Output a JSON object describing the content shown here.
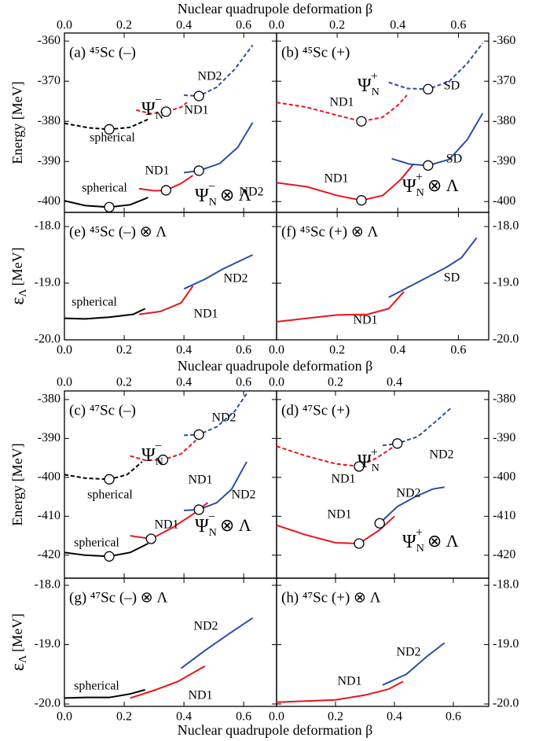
{
  "x_axis_labels": [
    "Nuclear quadrupole deformation β",
    "Nuclear quadrupole deformation β",
    "Nuclear quadrupole deformation β"
  ],
  "chart_data": [
    {
      "type": "line",
      "title": "(a) ⁴⁵Sc (–)",
      "ylabel": {
        "base": "Energy [MeV]"
      },
      "xlim": [
        0,
        0.71
      ],
      "ylim": [
        -402.7,
        -358
      ],
      "xticks": [
        {
          "value": 0,
          "label": "0.0"
        },
        {
          "value": 0.2,
          "label": "0.2"
        },
        {
          "value": 0.4,
          "label": "0.4"
        },
        {
          "value": 0.6,
          "label": "0.6"
        }
      ],
      "yticks": [
        -360,
        -370,
        -380,
        -390,
        -400
      ],
      "series": [
        {
          "name": "spherical",
          "color": "#000000",
          "style": "dashed",
          "x": [
            0,
            0.08,
            0.15,
            0.22,
            0.28
          ],
          "y": [
            -380.5,
            -381.6,
            -382,
            -381.5,
            -379.5
          ]
        },
        {
          "name": "ND1",
          "color": "#e8141c",
          "style": "dashed",
          "x": [
            0.24,
            0.29,
            0.34,
            0.39,
            0.41
          ],
          "y": [
            -377.2,
            -378.1,
            -377.6,
            -376.5,
            -375.3
          ]
        },
        {
          "name": "ND2",
          "color": "#2b4ea2",
          "style": "dashed",
          "x": [
            0.4,
            0.45,
            0.51,
            0.57,
            0.63
          ],
          "y": [
            -373.5,
            -373.7,
            -371.5,
            -367,
            -361
          ]
        },
        {
          "name": "spherical",
          "color": "#000000",
          "style": "solid",
          "x": [
            0,
            0.07,
            0.15,
            0.22,
            0.28
          ],
          "y": [
            -399.8,
            -401,
            -401.4,
            -400.8,
            -399
          ]
        },
        {
          "name": "ND1",
          "color": "#e8141c",
          "style": "solid",
          "x": [
            0.25,
            0.3,
            0.34,
            0.39,
            0.43
          ],
          "y": [
            -396.8,
            -397.3,
            -397.2,
            -395.5,
            -393.5
          ]
        },
        {
          "name": "ND2",
          "color": "#2b4ea2",
          "style": "solid",
          "x": [
            0.4,
            0.45,
            0.52,
            0.58,
            0.63
          ],
          "y": [
            -392.8,
            -392.3,
            -390.5,
            -386.5,
            -380.3
          ]
        }
      ],
      "markers": [
        {
          "x": 0.15,
          "y": -382
        },
        {
          "x": 0.34,
          "y": -377.6
        },
        {
          "x": 0.45,
          "y": -373.7
        },
        {
          "x": 0.15,
          "y": -401.4
        },
        {
          "x": 0.34,
          "y": -397.2
        },
        {
          "x": 0.45,
          "y": -392.3
        }
      ],
      "annotations": [
        {
          "base": "Ψ",
          "sub": "N",
          "sup": "−"
        },
        {
          "base": "Ψ",
          "sub": "N",
          "sup": "−",
          "tail": "⊗ Λ"
        }
      ]
    },
    {
      "type": "line",
      "title": "(b) ⁴⁵Sc (+)",
      "xlim": [
        0,
        0.7
      ],
      "ylim": [
        -402.7,
        -358
      ],
      "xticks": [
        {
          "value": 0,
          "label": "0.0"
        },
        {
          "value": 0.2,
          "label": "0.2"
        },
        {
          "value": 0.4,
          "label": "0.4"
        },
        {
          "value": 0.6,
          "label": "0.6"
        }
      ],
      "yticks": [
        -360,
        -370,
        -380,
        -390,
        -400
      ],
      "series": [
        {
          "name": "ND1",
          "color": "#e8141c",
          "style": "dashed",
          "x": [
            0,
            0.1,
            0.2,
            0.28,
            0.35,
            0.4,
            0.43
          ],
          "y": [
            -375.3,
            -376.5,
            -378.5,
            -380,
            -379,
            -376,
            -373.5
          ]
        },
        {
          "name": "SD",
          "color": "#2b4ea2",
          "style": "dashed",
          "x": [
            0.37,
            0.43,
            0.5,
            0.57,
            0.63,
            0.68
          ],
          "y": [
            -370.3,
            -371.8,
            -372,
            -370,
            -365.5,
            -360.5
          ]
        },
        {
          "name": "ND1",
          "color": "#e8141c",
          "style": "solid",
          "x": [
            0,
            0.1,
            0.2,
            0.28,
            0.35,
            0.41,
            0.45
          ],
          "y": [
            -395.3,
            -396.3,
            -398.5,
            -399.7,
            -398.5,
            -394.5,
            -390.8
          ]
        },
        {
          "name": "SD",
          "color": "#2b4ea2",
          "style": "solid",
          "x": [
            0.38,
            0.44,
            0.5,
            0.57,
            0.63,
            0.68
          ],
          "y": [
            -389.3,
            -390.7,
            -391,
            -389.5,
            -384.5,
            -378
          ]
        }
      ],
      "markers": [
        {
          "x": 0.28,
          "y": -380
        },
        {
          "x": 0.5,
          "y": -372
        },
        {
          "x": 0.28,
          "y": -399.7
        },
        {
          "x": 0.5,
          "y": -391
        }
      ],
      "annotations": [
        {
          "base": "Ψ",
          "sub": "N",
          "sup": "+"
        },
        {
          "base": "Ψ",
          "sub": "N",
          "sup": "+",
          "tail": "⊗ Λ"
        }
      ]
    },
    {
      "type": "line",
      "title": "(e) ⁴⁵Sc (–) ⊗ Λ",
      "ylabel": {
        "base": "ε",
        "sub": "Λ",
        "tail": "[MeV]"
      },
      "xlim": [
        0,
        0.71
      ],
      "ylim": [
        -20,
        -17.75
      ],
      "xticks": [
        {
          "value": 0,
          "label": "0.0"
        },
        {
          "value": 0.2,
          "label": "0.2"
        },
        {
          "value": 0.4,
          "label": "0.4"
        },
        {
          "value": 0.6,
          "label": "0.6"
        }
      ],
      "yticks": [
        {
          "value": -18,
          "label": "-18.0"
        },
        {
          "value": -19,
          "label": "-19.0"
        },
        {
          "value": -20,
          "label": "-20.0"
        }
      ],
      "series": [
        {
          "name": "spherical",
          "color": "#000000",
          "style": "solid",
          "x": [
            0,
            0.07,
            0.15,
            0.23,
            0.27
          ],
          "y": [
            -19.62,
            -19.63,
            -19.6,
            -19.55,
            -19.45
          ]
        },
        {
          "name": "ND1",
          "color": "#e8141c",
          "style": "solid",
          "x": [
            0.25,
            0.32,
            0.39,
            0.43
          ],
          "y": [
            -19.55,
            -19.5,
            -19.35,
            -19.05
          ]
        },
        {
          "name": "ND2",
          "color": "#2b4ea2",
          "style": "solid",
          "x": [
            0.4,
            0.47,
            0.53,
            0.63
          ],
          "y": [
            -19.1,
            -18.93,
            -18.75,
            -18.5
          ]
        }
      ]
    },
    {
      "type": "line",
      "title": "(f) ⁴⁵Sc (+) ⊗ Λ",
      "xlim": [
        0,
        0.7
      ],
      "ylim": [
        -20,
        -17.75
      ],
      "xticks": [
        {
          "value": 0,
          "label": "0.0"
        },
        {
          "value": 0.2,
          "label": "0.2"
        },
        {
          "value": 0.4,
          "label": "0.4"
        },
        {
          "value": 0.6,
          "label": "0.6"
        }
      ],
      "yticks": [
        {
          "value": -18,
          "label": "-18.0"
        },
        {
          "value": -19,
          "label": "-19.0"
        },
        {
          "value": -20,
          "label": "-20.0"
        }
      ],
      "series": [
        {
          "name": "ND1",
          "color": "#e8141c",
          "style": "solid",
          "x": [
            0,
            0.1,
            0.2,
            0.3,
            0.37,
            0.42
          ],
          "y": [
            -19.68,
            -19.62,
            -19.56,
            -19.55,
            -19.45,
            -19.15
          ]
        },
        {
          "name": "SD",
          "color": "#2b4ea2",
          "style": "solid",
          "x": [
            0.37,
            0.46,
            0.56,
            0.61,
            0.66
          ],
          "y": [
            -19.25,
            -19,
            -18.72,
            -18.55,
            -18.2
          ]
        }
      ]
    },
    {
      "type": "line",
      "title": "(c) ⁴⁷Sc (–)",
      "ylabel": {
        "base": "Energy [MeV]"
      },
      "xlim": [
        0,
        0.71
      ],
      "ylim": [
        -425.9,
        -377.8
      ],
      "xticks": [
        {
          "value": 0,
          "label": "0.0"
        },
        {
          "value": 0.2,
          "label": "0.2"
        },
        {
          "value": 0.4,
          "label": "0.4"
        },
        {
          "value": 0.6,
          "label": "0.6"
        }
      ],
      "yticks": [
        -380,
        -390,
        -400,
        -410,
        -420
      ],
      "series": [
        {
          "name": "spherical",
          "color": "#000000",
          "style": "dashed",
          "x": [
            0,
            0.07,
            0.15,
            0.21,
            0.26
          ],
          "y": [
            -399.3,
            -400.2,
            -400.5,
            -399.3,
            -396
          ]
        },
        {
          "name": "ND1",
          "color": "#e8141c",
          "style": "dashed",
          "x": [
            0.22,
            0.27,
            0.33,
            0.39,
            0.44
          ],
          "y": [
            -394.5,
            -395.6,
            -395.5,
            -394,
            -390.5
          ]
        },
        {
          "name": "ND2",
          "color": "#2b4ea2",
          "style": "dashed",
          "x": [
            0.4,
            0.45,
            0.51,
            0.57,
            0.61
          ],
          "y": [
            -389.2,
            -389,
            -387,
            -383,
            -378.5
          ]
        },
        {
          "name": "spherical",
          "color": "#000000",
          "style": "solid",
          "x": [
            0,
            0.07,
            0.15,
            0.22,
            0.28
          ],
          "y": [
            -419.3,
            -420,
            -420.3,
            -419.3,
            -417
          ]
        },
        {
          "name": "ND1",
          "color": "#e8141c",
          "style": "solid",
          "x": [
            0.22,
            0.29,
            0.36,
            0.43,
            0.48
          ],
          "y": [
            -415,
            -415.8,
            -413,
            -409.5,
            -406.5
          ]
        },
        {
          "name": "ND2",
          "color": "#2b4ea2",
          "style": "solid",
          "x": [
            0.4,
            0.45,
            0.51,
            0.56,
            0.61
          ],
          "y": [
            -408.5,
            -408.3,
            -406.5,
            -403,
            -396
          ]
        }
      ],
      "markers": [
        {
          "x": 0.15,
          "y": -400.5
        },
        {
          "x": 0.33,
          "y": -395.5
        },
        {
          "x": 0.45,
          "y": -389
        },
        {
          "x": 0.15,
          "y": -420.3
        },
        {
          "x": 0.29,
          "y": -415.8
        },
        {
          "x": 0.45,
          "y": -408.3
        }
      ],
      "annotations": [
        {
          "base": "Ψ",
          "sub": "N",
          "sup": "−"
        },
        {
          "base": "Ψ",
          "sub": "N",
          "sup": "−",
          "tail": "⊗ Λ"
        }
      ]
    },
    {
      "type": "line",
      "title": "(d) ⁴⁷Sc (+)",
      "xlim": [
        0,
        0.72
      ],
      "ylim": [
        -425.9,
        -377.8
      ],
      "xticks": [
        {
          "value": 0,
          "label": "0.0"
        },
        {
          "value": 0.2,
          "label": "0.2"
        },
        {
          "value": 0.4,
          "label": "0.4"
        }
      ],
      "yticks": [
        -380,
        -390,
        -400,
        -410,
        -420
      ],
      "series": [
        {
          "name": "ND1",
          "color": "#e8141c",
          "style": "dashed",
          "x": [
            0,
            0.1,
            0.2,
            0.28,
            0.34,
            0.4
          ],
          "y": [
            -392,
            -394.5,
            -396.5,
            -397.2,
            -395,
            -392
          ]
        },
        {
          "name": "ND2",
          "color": "#2b4ea2",
          "style": "dashed",
          "x": [
            0.36,
            0.41,
            0.48,
            0.55,
            0.59
          ],
          "y": [
            -391.8,
            -391.3,
            -389.5,
            -385,
            -382.3
          ]
        },
        {
          "name": "ND1",
          "color": "#e8141c",
          "style": "solid",
          "x": [
            0,
            0.1,
            0.2,
            0.28,
            0.35,
            0.4
          ],
          "y": [
            -412.3,
            -414.8,
            -416.8,
            -417,
            -413.5,
            -410
          ]
        },
        {
          "name": "ND2",
          "color": "#2b4ea2",
          "style": "solid",
          "x": [
            0.35,
            0.41,
            0.47,
            0.53,
            0.57
          ],
          "y": [
            -411.8,
            -407.5,
            -405,
            -403,
            -402.5
          ]
        }
      ],
      "markers": [
        {
          "x": 0.28,
          "y": -397.2
        },
        {
          "x": 0.41,
          "y": -391.3
        },
        {
          "x": 0.28,
          "y": -417
        },
        {
          "x": 0.35,
          "y": -411.8
        }
      ],
      "annotations": [
        {
          "base": "Ψ",
          "sub": "N",
          "sup": "+"
        },
        {
          "base": "Ψ",
          "sub": "N",
          "sup": "+",
          "tail": "⊗ Λ"
        }
      ]
    },
    {
      "type": "line",
      "title": "(g) ⁴⁷Sc (–) ⊗ Λ",
      "ylabel": {
        "base": "ε",
        "sub": "Λ",
        "tail": "[MeV]"
      },
      "xlim": [
        0,
        0.71
      ],
      "ylim": [
        -20.04,
        -17.88
      ],
      "xticks": [
        {
          "value": 0,
          "label": "0.0"
        },
        {
          "value": 0.2,
          "label": "0.2"
        },
        {
          "value": 0.4,
          "label": "0.4"
        },
        {
          "value": 0.6,
          "label": "0.6"
        }
      ],
      "yticks": [
        {
          "value": -18,
          "label": "-18.0"
        },
        {
          "value": -19,
          "label": "-19.0"
        },
        {
          "value": -20,
          "label": "-20.0"
        }
      ],
      "series": [
        {
          "name": "spherical",
          "color": "#000000",
          "style": "solid",
          "x": [
            0,
            0.07,
            0.15,
            0.22,
            0.27
          ],
          "y": [
            -19.9,
            -19.89,
            -19.89,
            -19.83,
            -19.76
          ]
        },
        {
          "name": "ND1",
          "color": "#e8141c",
          "style": "solid",
          "x": [
            0.22,
            0.3,
            0.38,
            0.47
          ],
          "y": [
            -19.9,
            -19.77,
            -19.62,
            -19.36
          ]
        },
        {
          "name": "ND2",
          "color": "#2b4ea2",
          "style": "solid",
          "x": [
            0.39,
            0.47,
            0.55,
            0.63
          ],
          "y": [
            -19.4,
            -19.1,
            -18.82,
            -18.55
          ]
        }
      ]
    },
    {
      "type": "line",
      "title": "(h) ⁴⁷Sc (+) ⊗ Λ",
      "xlim": [
        0,
        0.72
      ],
      "ylim": [
        -20.04,
        -17.88
      ],
      "xticks": [
        {
          "value": 0,
          "label": "0.0"
        },
        {
          "value": 0.2,
          "label": "0.2"
        },
        {
          "value": 0.4,
          "label": "0.4"
        },
        {
          "value": 0.6,
          "label": "0.6"
        }
      ],
      "yticks": [
        {
          "value": -18,
          "label": "-18.0"
        },
        {
          "value": -19,
          "label": "-19.0"
        },
        {
          "value": -20,
          "label": "-20.0"
        }
      ],
      "series": [
        {
          "name": "ND1",
          "color": "#e8141c",
          "style": "solid",
          "x": [
            0,
            0.1,
            0.2,
            0.3,
            0.38,
            0.43
          ],
          "y": [
            -19.97,
            -19.95,
            -19.93,
            -19.85,
            -19.75,
            -19.62
          ]
        },
        {
          "name": "ND2",
          "color": "#2b4ea2",
          "style": "solid",
          "x": [
            0.36,
            0.44,
            0.51,
            0.57
          ],
          "y": [
            -19.68,
            -19.5,
            -19.2,
            -18.97
          ]
        }
      ]
    }
  ]
}
